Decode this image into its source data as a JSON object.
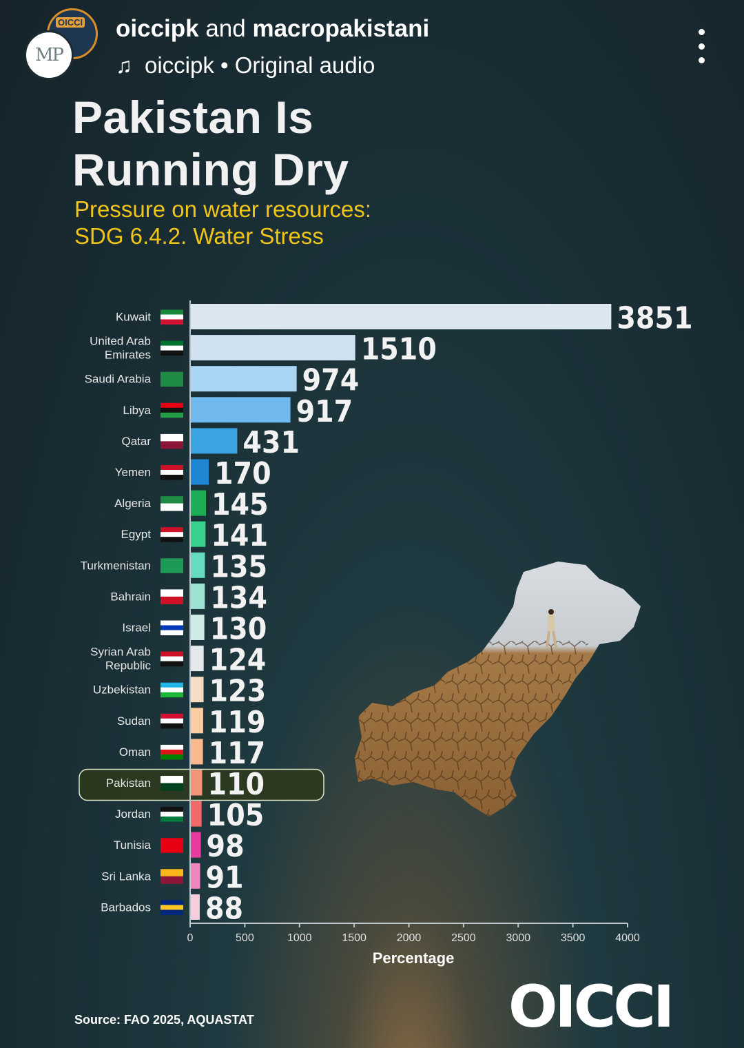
{
  "header": {
    "author1": "oiccipk",
    "connector": " and ",
    "author2": "macropakistani",
    "audio_text": "oiccipk • Original audio",
    "avatar_back_text": "OICCI",
    "avatar_front_text": "MP"
  },
  "title_line1": "Pakistan Is",
  "title_line2": "Running Dry",
  "subtitle_line1": "Pressure on water resources:",
  "subtitle_line2": "SDG 6.4.2. Water Stress",
  "source": "Source: FAO 2025, AQUASTAT",
  "logo": "OICCI",
  "chart_data": {
    "type": "bar",
    "orientation": "horizontal",
    "categories": [
      "Kuwait",
      "United Arab Emirates",
      "Saudi Arabia",
      "Libya",
      "Qatar",
      "Yemen",
      "Algeria",
      "Egypt",
      "Turkmenistan",
      "Bahrain",
      "Israel",
      "Syrian Arab Republic",
      "Uzbekistan",
      "Sudan",
      "Oman",
      "Pakistan",
      "Jordan",
      "Tunisia",
      "Sri Lanka",
      "Barbados"
    ],
    "values": [
      3851,
      1510,
      974,
      917,
      431,
      170,
      145,
      141,
      135,
      134,
      130,
      124,
      123,
      119,
      117,
      110,
      105,
      98,
      91,
      88
    ],
    "colors": [
      "#dce6ee",
      "#cfe0f0",
      "#a9d6f5",
      "#6fb9ee",
      "#3ba4e0",
      "#1f86d3",
      "#1fae55",
      "#3ad18e",
      "#66dbc2",
      "#9ee2d3",
      "#cdeae4",
      "#e3e8ea",
      "#f7dcc4",
      "#fbcca0",
      "#f9b98c",
      "#f4957a",
      "#f16a6a",
      "#e83c9f",
      "#f086bd",
      "#f5cddd"
    ],
    "highlight": "Pakistan",
    "xlabel": "Percentage",
    "xlim": [
      0,
      4000
    ],
    "xticks": [
      0,
      500,
      1000,
      1500,
      2000,
      2500,
      3000,
      3500,
      4000
    ],
    "flag_icons": [
      "kuwait-flag",
      "uae-flag",
      "saudi-flag",
      "libya-flag",
      "qatar-flag",
      "yemen-flag",
      "algeria-flag",
      "egypt-flag",
      "turkmenistan-flag",
      "bahrain-flag",
      "israel-flag",
      "syria-flag",
      "uzbekistan-flag",
      "sudan-flag",
      "oman-flag",
      "pakistan-flag",
      "jordan-flag",
      "tunisia-flag",
      "srilanka-flag",
      "barbados-flag"
    ]
  }
}
